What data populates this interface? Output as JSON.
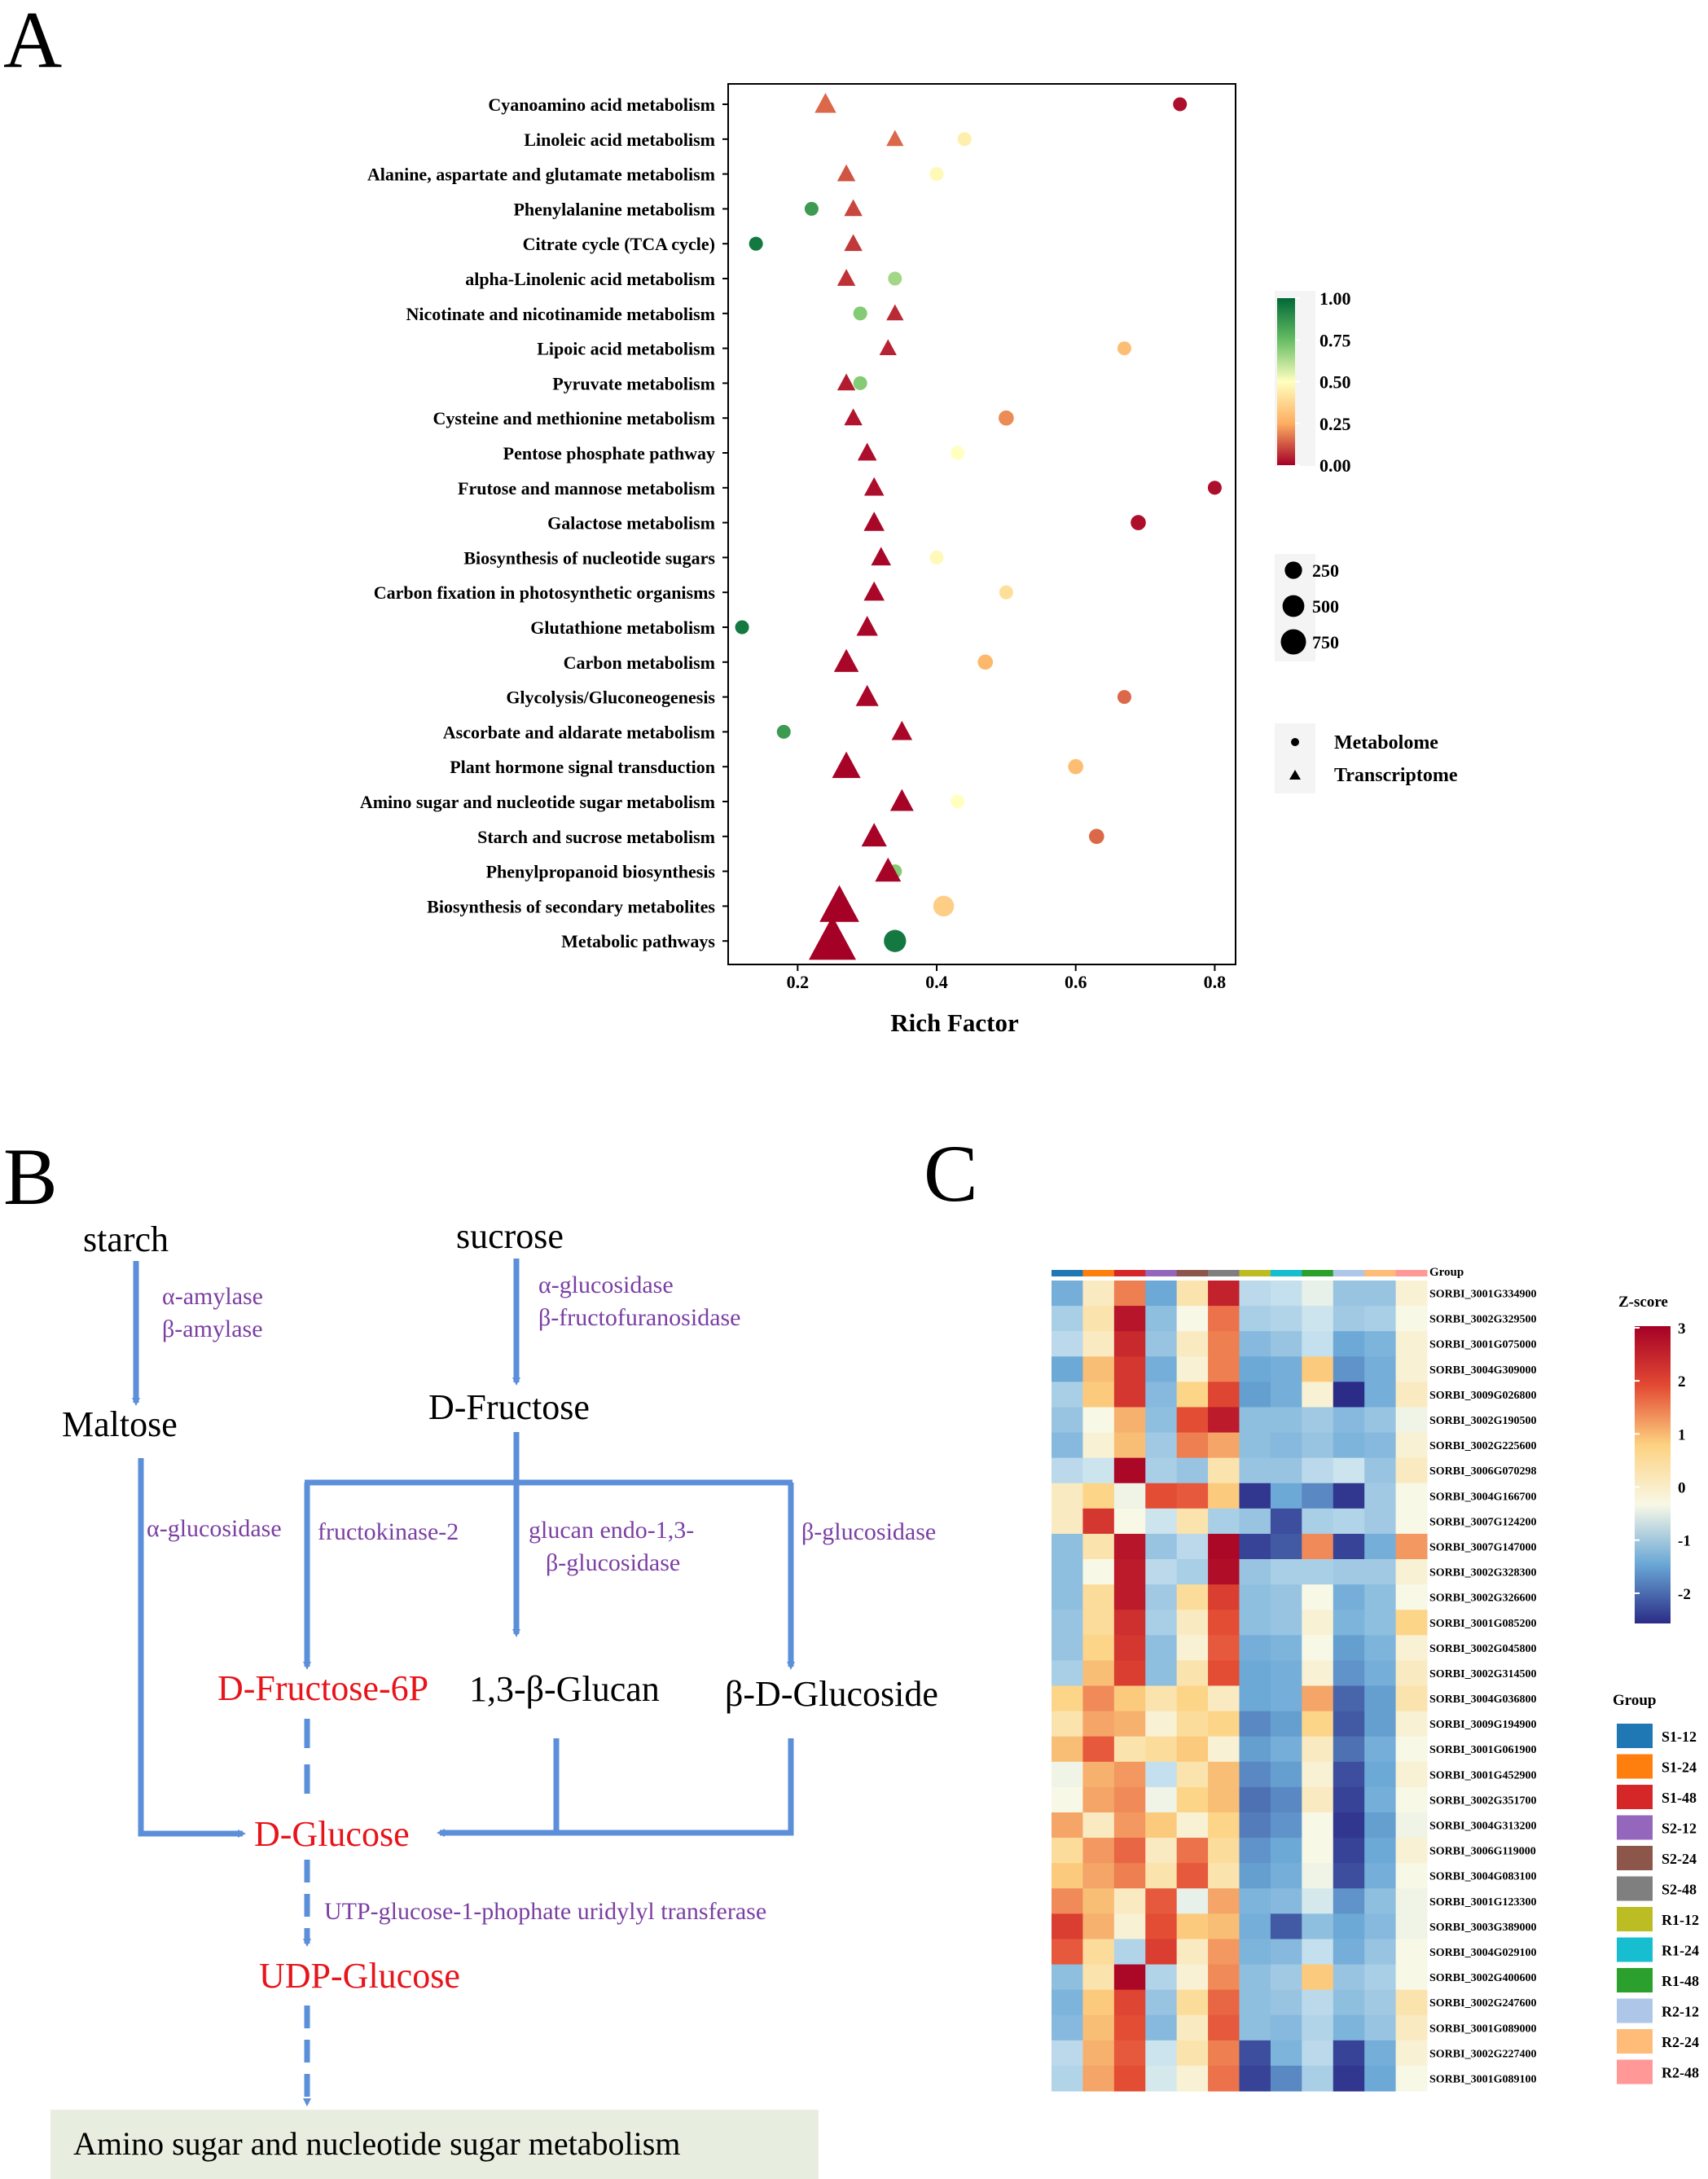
{
  "panel_labels": {
    "a": "A",
    "b": "B",
    "c": "C"
  },
  "chart_data": [
    {
      "type": "scatter",
      "title": "",
      "xlabel": "Rich Factor",
      "ylabel": "",
      "xlim": [
        0.1,
        0.83
      ],
      "xticks": [
        0.2,
        0.4,
        0.6,
        0.8
      ],
      "xtick_labels": [
        "0.2",
        "0.4",
        "0.6",
        "0.8"
      ],
      "grid": false,
      "categories": [
        "Cyanoamino acid metabolism",
        "Linoleic acid metabolism",
        "Alanine, aspartate and glutamate metabolism",
        "Phenylalanine metabolism",
        "Citrate cycle (TCA cycle)",
        "alpha-Linolenic acid metabolism",
        "Nicotinate and nicotinamide metabolism",
        "Lipoic acid metabolism",
        "Pyruvate metabolism",
        "Cysteine and methionine metabolism",
        "Pentose phosphate pathway",
        "Frutose and mannose metabolism",
        "Galactose metabolism",
        "Biosynthesis of nucleotide sugars",
        "Carbon fixation in photosynthetic organisms",
        "Glutathione metabolism",
        "Carbon metabolism",
        "Glycolysis/Gluconeogenesis",
        "Ascorbate and aldarate metabolism",
        "Plant hormone signal transduction",
        "Amino sugar and nucleotide sugar metabolism",
        "Starch and sucrose metabolism",
        "Phenylpropanoid biosynthesis",
        "Biosynthesis of secondary  metabolites",
        "Metabolic pathways"
      ],
      "series": [
        {
          "name": "Metabolome",
          "shape": "circle",
          "points": [
            {
              "rich": 0.75,
              "q": 0.02,
              "count": 30
            },
            {
              "rich": 0.44,
              "q": 0.45,
              "count": 30
            },
            {
              "rich": 0.4,
              "q": 0.48,
              "count": 30
            },
            {
              "rich": 0.22,
              "q": 0.85,
              "count": 30
            },
            {
              "rich": 0.14,
              "q": 0.95,
              "count": 30
            },
            {
              "rich": 0.34,
              "q": 0.65,
              "count": 30
            },
            {
              "rich": 0.29,
              "q": 0.7,
              "count": 30
            },
            {
              "rich": 0.67,
              "q": 0.3,
              "count": 30
            },
            {
              "rich": 0.29,
              "q": 0.7,
              "count": 30
            },
            {
              "rich": 0.5,
              "q": 0.2,
              "count": 40
            },
            {
              "rich": 0.43,
              "q": 0.5,
              "count": 30
            },
            {
              "rich": 0.8,
              "q": 0.02,
              "count": 30
            },
            {
              "rich": 0.69,
              "q": 0.02,
              "count": 40
            },
            {
              "rich": 0.4,
              "q": 0.48,
              "count": 30
            },
            {
              "rich": 0.5,
              "q": 0.4,
              "count": 30
            },
            {
              "rich": 0.12,
              "q": 0.95,
              "count": 30
            },
            {
              "rich": 0.47,
              "q": 0.28,
              "count": 40
            },
            {
              "rich": 0.67,
              "q": 0.15,
              "count": 30
            },
            {
              "rich": 0.18,
              "q": 0.85,
              "count": 30
            },
            {
              "rich": 0.6,
              "q": 0.3,
              "count": 40
            },
            {
              "rich": 0.43,
              "q": 0.5,
              "count": 30
            },
            {
              "rich": 0.63,
              "q": 0.15,
              "count": 40
            },
            {
              "rich": 0.34,
              "q": 0.7,
              "count": 30
            },
            {
              "rich": 0.41,
              "q": 0.35,
              "count": 100
            },
            {
              "rich": 0.34,
              "q": 0.95,
              "count": 120
            }
          ]
        },
        {
          "name": "Transcriptome",
          "shape": "triangle",
          "points": [
            {
              "rich": 0.24,
              "q": 0.15,
              "count": 110
            },
            {
              "rich": 0.34,
              "q": 0.15,
              "count": 60
            },
            {
              "rich": 0.27,
              "q": 0.12,
              "count": 70
            },
            {
              "rich": 0.28,
              "q": 0.1,
              "count": 70
            },
            {
              "rich": 0.28,
              "q": 0.08,
              "count": 70
            },
            {
              "rich": 0.27,
              "q": 0.07,
              "count": 70
            },
            {
              "rich": 0.34,
              "q": 0.06,
              "count": 60
            },
            {
              "rich": 0.33,
              "q": 0.05,
              "count": 60
            },
            {
              "rich": 0.27,
              "q": 0.04,
              "count": 70
            },
            {
              "rich": 0.28,
              "q": 0.03,
              "count": 70
            },
            {
              "rich": 0.3,
              "q": 0.02,
              "count": 80
            },
            {
              "rich": 0.31,
              "q": 0.02,
              "count": 90
            },
            {
              "rich": 0.31,
              "q": 0.01,
              "count": 100
            },
            {
              "rich": 0.32,
              "q": 0.01,
              "count": 90
            },
            {
              "rich": 0.31,
              "q": 0.01,
              "count": 100
            },
            {
              "rich": 0.3,
              "q": 0.01,
              "count": 110
            },
            {
              "rich": 0.27,
              "q": 0.01,
              "count": 160
            },
            {
              "rich": 0.3,
              "q": 0.01,
              "count": 130
            },
            {
              "rich": 0.35,
              "q": 0.01,
              "count": 100
            },
            {
              "rich": 0.27,
              "q": 0.005,
              "count": 230
            },
            {
              "rich": 0.35,
              "q": 0.005,
              "count": 140
            },
            {
              "rich": 0.31,
              "q": 0.005,
              "count": 170
            },
            {
              "rich": 0.33,
              "q": 0.005,
              "count": 180
            },
            {
              "rich": 0.26,
              "q": 0.0,
              "count": 500
            },
            {
              "rich": 0.25,
              "q": 0.0,
              "count": 750
            }
          ]
        }
      ],
      "color_legend": {
        "ticks": [
          "1.00",
          "0.75",
          "0.50",
          "0.25",
          "0.00"
        ],
        "values": [
          1.0,
          0.75,
          0.5,
          0.25,
          0.0
        ]
      },
      "size_legend": {
        "labels": [
          "250",
          "500",
          "750"
        ],
        "values": [
          250,
          500,
          750
        ]
      },
      "shape_legend": {
        "labels": [
          "Metabolome",
          "Transcriptome"
        ]
      },
      "legend_placement": "right"
    },
    {
      "type": "heatmap",
      "title": "",
      "group_label": "Group",
      "colorbar_title": "Z-score",
      "colorbar_ticks": [
        "3",
        "2",
        "1",
        "0",
        "-1",
        "-2"
      ],
      "colorbar_values": [
        3,
        2,
        1,
        0,
        -1,
        -2
      ],
      "groups": [
        "S1-12",
        "S1-24",
        "S1-48",
        "S2-12",
        "S2-24",
        "S2-48",
        "R1-12",
        "R1-24",
        "R1-48",
        "R2-12",
        "R2-24",
        "R2-48"
      ],
      "group_colors": [
        "#1f77b4",
        "#ff7f0e",
        "#d62728",
        "#9467bd",
        "#8c564b",
        "#7f7f7f",
        "#bcbd22",
        "#17becf",
        "#2ca02c",
        "#aec7e8",
        "#ffbb78",
        "#ff9896"
      ],
      "genes": [
        "SORBI_3001G334900",
        "SORBI_3002G329500",
        "SORBI_3001G075000",
        "SORBI_3004G309000",
        "SORBI_3009G026800",
        "SORBI_3002G190500",
        "SORBI_3002G225600",
        "SORBI_3006G070298",
        "SORBI_3004G166700",
        "SORBI_3007G124200",
        "SORBI_3007G147000",
        "SORBI_3002G328300",
        "SORBI_3002G326600",
        "SORBI_3001G085200",
        "SORBI_3002G045800",
        "SORBI_3002G314500",
        "SORBI_3004G036800",
        "SORBI_3009G194900",
        "SORBI_3001G061900",
        "SORBI_3001G452900",
        "SORBI_3002G351700",
        "SORBI_3004G313200",
        "SORBI_3006G119000",
        "SORBI_3004G083100",
        "SORBI_3001G123300",
        "SORBI_3003G389000",
        "SORBI_3004G029100",
        "SORBI_3002G400600",
        "SORBI_3002G247600",
        "SORBI_3001G089000",
        "SORBI_3002G227400",
        "SORBI_3001G089100"
      ],
      "values": [
        [
          -1.2,
          0.5,
          1.5,
          -1.3,
          0.6,
          2.5,
          -0.4,
          -0.3,
          0.1,
          -0.8,
          -0.8,
          0.4
        ],
        [
          -0.6,
          0.6,
          2.7,
          -0.9,
          0.3,
          1.6,
          -0.6,
          -0.5,
          -0.2,
          -0.7,
          -0.6,
          0.3
        ],
        [
          -0.4,
          0.5,
          2.4,
          -0.8,
          0.5,
          1.5,
          -1.0,
          -0.8,
          -0.3,
          -1.3,
          -1.1,
          0.4
        ],
        [
          -1.3,
          1.0,
          2.2,
          -1.2,
          0.4,
          1.5,
          -1.3,
          -1.2,
          0.9,
          -1.5,
          -1.2,
          0.4
        ],
        [
          -0.6,
          0.9,
          2.2,
          -1.0,
          0.8,
          2.0,
          -1.4,
          -1.2,
          0.4,
          -2.4,
          -1.2,
          0.5
        ],
        [
          -0.8,
          0.3,
          1.1,
          -0.9,
          1.9,
          2.6,
          -0.9,
          -0.9,
          -0.7,
          -1.0,
          -0.8,
          0.2
        ],
        [
          -1.0,
          0.4,
          1.0,
          -0.7,
          1.5,
          1.2,
          -0.9,
          -1.0,
          -0.8,
          -1.1,
          -1.0,
          0.4
        ],
        [
          -0.4,
          -0.2,
          2.9,
          -0.6,
          -0.8,
          0.6,
          -0.8,
          -0.8,
          -0.4,
          -0.2,
          -0.8,
          0.5
        ],
        [
          0.5,
          0.8,
          0.2,
          1.9,
          1.8,
          0.9,
          -2.3,
          -1.3,
          -1.6,
          -2.3,
          -0.7,
          0.3
        ],
        [
          0.5,
          2.2,
          0.3,
          -0.2,
          0.6,
          -0.6,
          -0.8,
          -2.1,
          -0.6,
          -0.5,
          -0.7,
          0.3
        ],
        [
          -0.9,
          0.6,
          2.7,
          -0.8,
          -0.4,
          2.9,
          -2.2,
          -2.0,
          1.4,
          -2.2,
          -1.2,
          1.3
        ],
        [
          -0.9,
          0.3,
          2.6,
          -0.4,
          -0.6,
          2.8,
          -0.8,
          -0.6,
          -0.6,
          -0.7,
          -0.7,
          0.4
        ],
        [
          -0.9,
          0.7,
          2.6,
          -0.7,
          0.7,
          2.1,
          -0.9,
          -0.8,
          0.3,
          -1.2,
          -0.9,
          0.3
        ],
        [
          -0.8,
          0.7,
          2.3,
          -0.6,
          0.5,
          1.9,
          -0.9,
          -0.8,
          0.4,
          -1.1,
          -0.9,
          0.8
        ],
        [
          -0.8,
          0.8,
          2.2,
          -0.9,
          0.4,
          1.8,
          -1.2,
          -1.1,
          0.3,
          -1.4,
          -1.1,
          0.4
        ],
        [
          -0.6,
          1.0,
          2.1,
          -0.9,
          0.6,
          1.9,
          -1.3,
          -1.2,
          0.4,
          -1.5,
          -1.2,
          0.5
        ],
        [
          0.8,
          1.4,
          0.9,
          0.6,
          0.8,
          0.5,
          -1.3,
          -1.2,
          1.2,
          -1.9,
          -1.4,
          0.6
        ],
        [
          0.6,
          1.2,
          1.1,
          0.4,
          0.7,
          0.8,
          -1.6,
          -1.4,
          0.8,
          -2.0,
          -1.4,
          0.4
        ],
        [
          1.0,
          1.8,
          0.6,
          0.7,
          0.9,
          0.4,
          -1.4,
          -1.2,
          0.5,
          -1.8,
          -1.2,
          0.3
        ],
        [
          0.2,
          1.1,
          1.3,
          -0.3,
          0.6,
          1.0,
          -1.6,
          -1.4,
          0.4,
          -2.1,
          -1.3,
          0.4
        ],
        [
          0.3,
          1.2,
          1.4,
          0.2,
          0.8,
          1.0,
          -1.8,
          -1.6,
          0.5,
          -2.2,
          -1.2,
          0.3
        ],
        [
          1.2,
          0.5,
          1.3,
          0.9,
          0.4,
          0.8,
          -1.7,
          -1.5,
          0.3,
          -2.3,
          -1.4,
          0.2
        ],
        [
          0.7,
          1.3,
          1.7,
          0.5,
          1.6,
          0.7,
          -1.5,
          -1.3,
          0.3,
          -2.2,
          -1.3,
          0.4
        ],
        [
          0.9,
          1.2,
          1.5,
          0.6,
          1.8,
          0.6,
          -1.4,
          -1.2,
          0.2,
          -2.1,
          -1.2,
          0.3
        ],
        [
          1.4,
          1.0,
          0.5,
          1.8,
          0.1,
          1.2,
          -1.1,
          -1.0,
          -0.1,
          -1.5,
          -0.9,
          0.2
        ],
        [
          2.1,
          1.1,
          0.4,
          1.9,
          0.9,
          1.0,
          -1.2,
          -2.0,
          -0.9,
          -1.3,
          -1.0,
          0.2
        ],
        [
          1.8,
          0.7,
          -0.5,
          2.1,
          0.5,
          1.3,
          -1.1,
          -1.0,
          -0.3,
          -1.2,
          -0.8,
          0.3
        ],
        [
          -0.9,
          0.6,
          2.9,
          -0.5,
          0.4,
          1.4,
          -0.9,
          -0.7,
          0.9,
          -0.8,
          -0.6,
          0.3
        ],
        [
          -1.1,
          0.9,
          2.0,
          -0.8,
          0.7,
          1.7,
          -0.9,
          -0.8,
          -0.4,
          -0.9,
          -0.7,
          0.6
        ],
        [
          -1.0,
          1.0,
          1.9,
          -1.0,
          0.5,
          1.8,
          -0.9,
          -1.0,
          -0.5,
          -1.1,
          -0.8,
          0.5
        ],
        [
          -0.4,
          1.1,
          1.8,
          -0.2,
          0.6,
          1.5,
          -2.1,
          -1.1,
          -0.4,
          -2.2,
          -1.2,
          0.4
        ],
        [
          -0.5,
          1.2,
          1.9,
          -0.1,
          0.4,
          1.6,
          -2.2,
          -1.6,
          -0.6,
          -2.3,
          -1.3,
          0.3
        ]
      ]
    }
  ],
  "pathway": {
    "nodes": {
      "starch": "starch",
      "sucrose": "sucrose",
      "maltose": "Maltose",
      "dfructose": "D-Fructose",
      "dfructose6p": "D-Fructose-6P",
      "glucan": "1,3-β-Glucan",
      "glucoside": "β-D-Glucoside",
      "dglucose": "D-Glucose",
      "udpglucose": "UDP-Glucose",
      "final_box": "Amino sugar and nucleotide sugar metabolism"
    },
    "enzymes": {
      "amylase_a": "α-amylase",
      "amylase_b": "β-amylase",
      "sucrose_a": "α-glucosidase",
      "sucrose_b": "β-fructofuranosidase",
      "maltose_glucosidase": "α-glucosidase",
      "fructokinase": "fructokinase-2",
      "glucan_endo_1": "glucan endo-1,3-",
      "glucan_endo_2": "β-glucosidase",
      "beta_glucosidase": "β-glucosidase",
      "utp": "UTP-glucose-1-phophate uridylyl transferase"
    },
    "colors": {
      "arrow": "#5b8fd9",
      "enzyme": "#7b3fa3",
      "highlight": "#e8141b",
      "box": "#e8eedf"
    }
  }
}
